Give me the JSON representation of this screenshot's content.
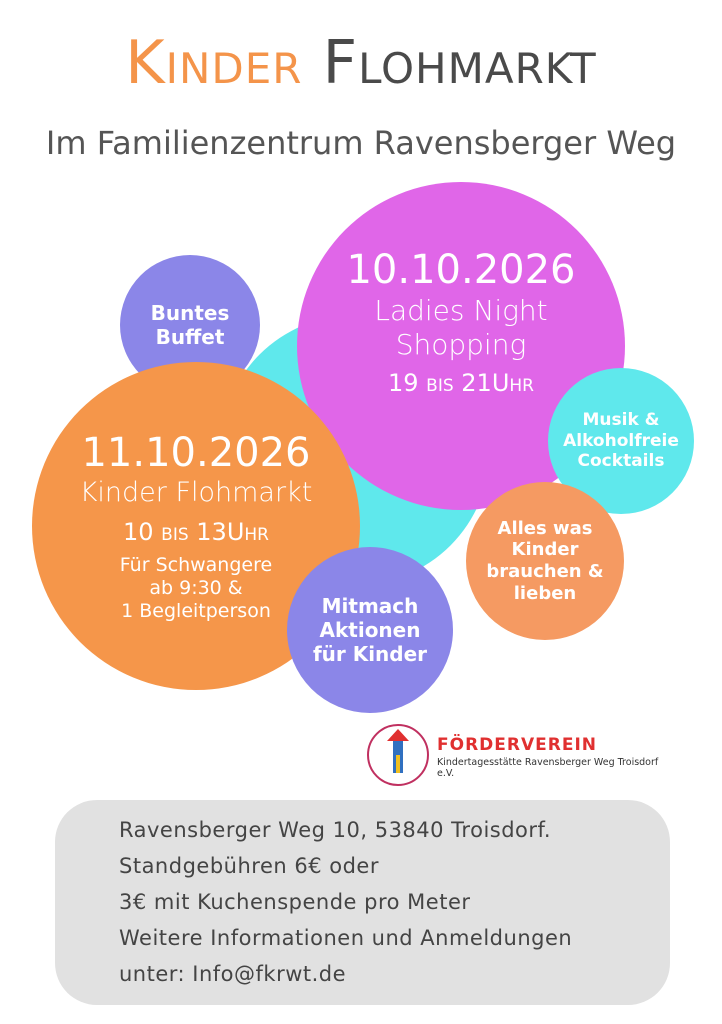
{
  "header": {
    "title_first": "Kinder",
    "title_second": "Flohmarkt",
    "subtitle": "Im Familienzentrum Ravensberger Weg"
  },
  "bubbles": {
    "buffet": [
      "Buntes",
      "Buffet"
    ],
    "ladies_night": {
      "date": "10.10.2026",
      "title": [
        "Ladies Night",
        "Shopping"
      ],
      "time": "19 bis 21Uhr"
    },
    "cocktails": [
      "Musik &",
      "Alkoholfreie",
      "Cocktails"
    ],
    "flohmarkt": {
      "date": "11.10.2026",
      "title": "Kinder Flohmarkt",
      "time": "10 bis 13Uhr",
      "note": [
        "Für Schwangere",
        "ab 9:30 &",
        "1 Begleitperson"
      ]
    },
    "kinder": [
      "Alles was",
      "Kinder",
      "brauchen &",
      "lieben"
    ],
    "mitmach": [
      "Mitmach",
      "Aktionen",
      "für Kinder"
    ]
  },
  "logo": {
    "name": "FÖRDERVEREIN",
    "subtitle": "Kindertagesstätte Ravensberger Weg Troisdorf e.V."
  },
  "footer": {
    "lines": [
      "Ravensberger Weg 10, 53840 Troisdorf.",
      "Standgebühren 6€ oder",
      "3€ mit Kuchenspende pro Meter",
      "Weitere Informationen und Anmeldungen",
      "unter: Info@fkrwt.de"
    ]
  }
}
